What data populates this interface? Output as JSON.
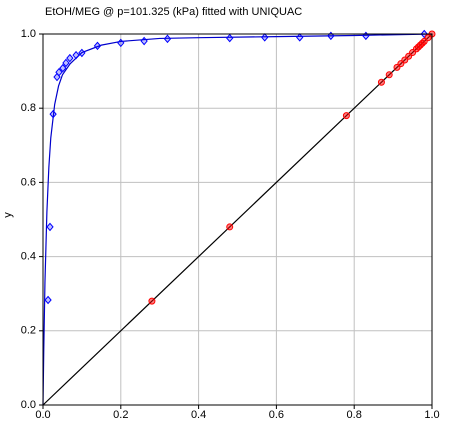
{
  "chart_data": {
    "type": "scatter",
    "title": "EtOH/MEG @ p=101.325 (kPa) fitted with UNIQUAC",
    "ylabel": "y",
    "xlim": [
      0,
      1
    ],
    "ylim": [
      0,
      1
    ],
    "xticks": [
      {
        "value": 0,
        "label": "0.0"
      },
      0.2,
      0.4,
      0.6,
      0.8,
      {
        "value": 1,
        "label": "1.0"
      }
    ],
    "yticks": [
      {
        "value": 0,
        "label": "0.0"
      },
      0.2,
      0.4,
      0.6,
      0.8,
      {
        "value": 1,
        "label": "1.0"
      }
    ],
    "grid": true,
    "series": [
      {
        "type": "line",
        "color": "#000000",
        "x": [
          0,
          1
        ],
        "values": [
          0,
          1
        ]
      },
      {
        "type": "line",
        "color": "#0000cc",
        "x": [
          0,
          0.002,
          0.005,
          0.01,
          0.015,
          0.02,
          0.03,
          0.04,
          0.05,
          0.07,
          0.1,
          0.15,
          0.2,
          0.3,
          0.4,
          0.6,
          0.8,
          1.0
        ],
        "values": [
          0,
          0.15,
          0.33,
          0.52,
          0.64,
          0.72,
          0.81,
          0.86,
          0.89,
          0.92,
          0.95,
          0.97,
          0.98,
          0.988,
          0.99,
          0.993,
          0.996,
          1.0
        ]
      },
      {
        "type": "scatter",
        "marker": "diamond",
        "color": "#0000ff",
        "x": [
          0.013,
          0.018,
          0.026,
          0.036,
          0.041,
          0.051,
          0.059,
          0.069,
          0.085,
          0.1,
          0.14,
          0.2,
          0.26,
          0.32,
          0.48,
          0.57,
          0.66,
          0.74,
          0.83,
          0.98
        ],
        "values": [
          0.283,
          0.48,
          0.784,
          0.884,
          0.897,
          0.908,
          0.922,
          0.935,
          0.943,
          0.949,
          0.968,
          0.976,
          0.981,
          0.987,
          0.989,
          0.991,
          0.991,
          0.995,
          0.995,
          1.0
        ]
      },
      {
        "type": "scatter",
        "marker": "circle",
        "color": "#ff0000",
        "x": [
          0.28,
          0.48,
          0.78,
          0.87,
          0.89,
          0.91,
          0.92,
          0.93,
          0.94,
          0.95,
          0.96,
          0.965,
          0.97,
          0.975,
          0.98,
          0.99,
          1.0
        ],
        "values": [
          0.28,
          0.48,
          0.78,
          0.87,
          0.89,
          0.91,
          0.92,
          0.93,
          0.94,
          0.95,
          0.96,
          0.965,
          0.97,
          0.975,
          0.98,
          0.99,
          1.0
        ]
      }
    ]
  }
}
